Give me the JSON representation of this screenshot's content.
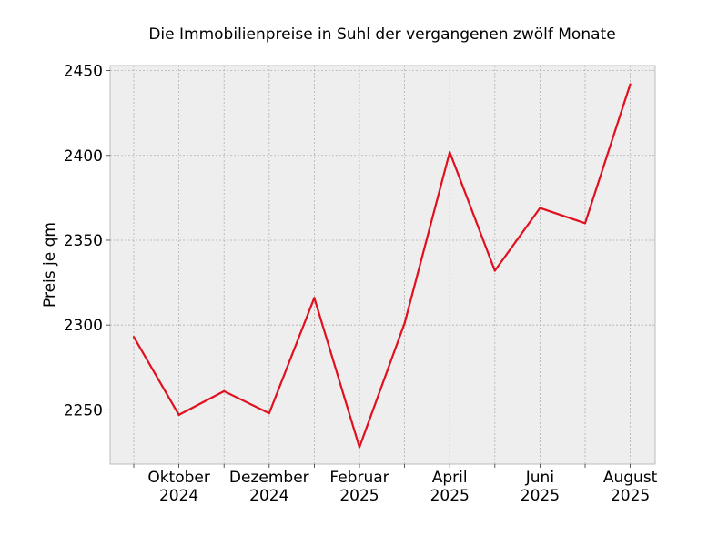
{
  "chart_data": {
    "type": "line",
    "title": "Die Immobilienpreise in Suhl der vergangenen zwölf Monate",
    "xlabel": "",
    "ylabel": "Preis je qm",
    "x": [
      "2024-09",
      "2024-10",
      "2024-11",
      "2024-12",
      "2025-01",
      "2025-02",
      "2025-03",
      "2025-04",
      "2025-05",
      "2025-06",
      "2025-07",
      "2025-08"
    ],
    "series": [
      {
        "values": [
          2293,
          2247,
          2261,
          2248,
          2316,
          2228,
          2301,
          2402,
          2332,
          2369,
          2360,
          2442
        ],
        "color": "#e0101e"
      }
    ],
    "ylim": [
      2218,
      2453
    ],
    "yticks": [
      "2250",
      "2300",
      "2350",
      "2400",
      "2450"
    ],
    "xticks": [
      {
        "x": "2024-10",
        "line1": "Oktober",
        "line2": "2024"
      },
      {
        "x": "2024-12",
        "line1": "Dezember",
        "line2": "2024"
      },
      {
        "x": "2025-02",
        "line1": "Februar",
        "line2": "2025"
      },
      {
        "x": "2025-04",
        "line1": "April",
        "line2": "2025"
      },
      {
        "x": "2025-06",
        "line1": "Juni",
        "line2": "2025"
      },
      {
        "x": "2025-08",
        "line1": "August",
        "line2": "2025"
      }
    ],
    "grid": true,
    "background": "#eeeeee",
    "grid_color": "#b0b0b0"
  }
}
